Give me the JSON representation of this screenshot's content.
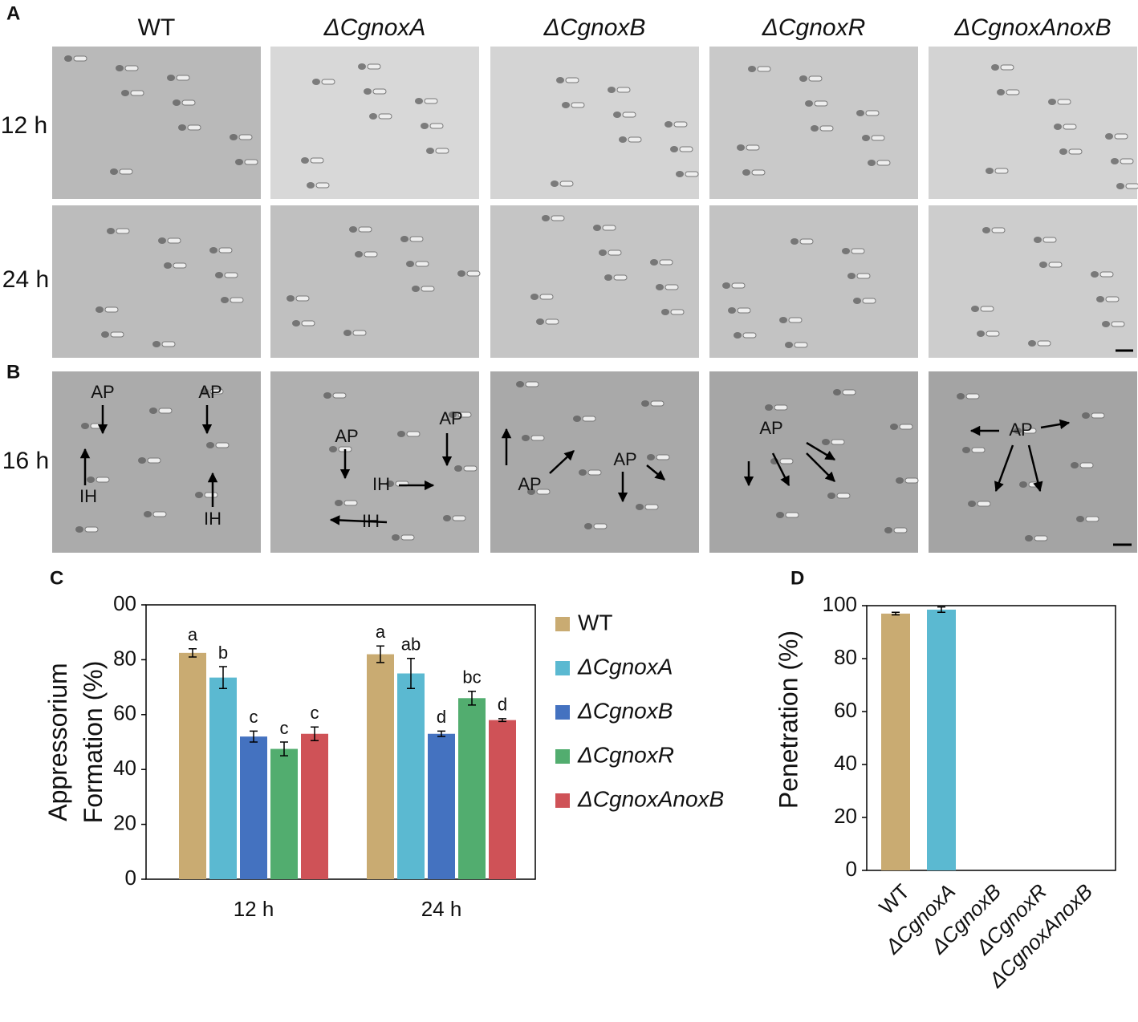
{
  "figure": {
    "panel_labels": [
      "A",
      "B",
      "C",
      "D"
    ],
    "columns": [
      "WT",
      "ΔCgnoxA",
      "ΔCgnoxB",
      "ΔCgnoxR",
      "ΔCgnoxAnoxB"
    ],
    "rows_a": [
      "12 h",
      "24 h"
    ],
    "row_b": "16 h",
    "annotations": [
      "AP",
      "AP",
      "IH",
      "IH",
      "AP",
      "AP",
      "IH",
      "IH",
      "AP",
      "AP",
      "AP",
      "AP"
    ]
  },
  "chart_data": [
    {
      "type": "bar",
      "ylabel": [
        "Appressorium",
        "Formation (%)"
      ],
      "categories": [
        "12 h",
        "24 h"
      ],
      "ylim": [
        0,
        100
      ],
      "yticks": [
        0,
        20,
        40,
        60,
        80,
        {
          "value": 100,
          "label": "00"
        }
      ],
      "series": [
        {
          "name": "WT",
          "color": "#c9ab72",
          "values": [
            82.5,
            82
          ],
          "errors": [
            1.5,
            3
          ],
          "letters": [
            "a",
            "a"
          ]
        },
        {
          "name": "ΔCgnoxA",
          "color": "#5bb9d1",
          "values": [
            73.5,
            75
          ],
          "errors": [
            4,
            5.5
          ],
          "letters": [
            "b",
            "ab"
          ]
        },
        {
          "name": "ΔCgnoxB",
          "color": "#4472c0",
          "values": [
            52,
            53
          ],
          "errors": [
            2,
            1
          ],
          "letters": [
            "c",
            "d"
          ]
        },
        {
          "name": "ΔCgnoxR",
          "color": "#52ad6f",
          "values": [
            47.5,
            66
          ],
          "errors": [
            2.5,
            2.5
          ],
          "letters": [
            "c",
            "bc"
          ]
        },
        {
          "name": "ΔCgnoxAnoxB",
          "color": "#cf5257",
          "values": [
            53,
            58
          ],
          "errors": [
            2.5,
            0.5
          ],
          "letters": [
            "c",
            "d"
          ]
        }
      ]
    },
    {
      "type": "bar",
      "ylabel": "Penetration (%)",
      "categories": [
        "WT",
        "ΔCgnoxA",
        "ΔCgnoxB",
        "ΔCgnoxR",
        "ΔCgnoxAnoxB"
      ],
      "values": [
        97,
        98.5,
        0,
        0,
        0
      ],
      "errors": [
        0.5,
        1,
        0,
        0,
        0
      ],
      "colors": [
        "#c9ab72",
        "#5bb9d1",
        "#4472c0",
        "#52ad6f",
        "#cf5257"
      ],
      "ylim": [
        0,
        100
      ],
      "yticks": [
        0,
        20,
        40,
        60,
        80,
        100
      ]
    }
  ]
}
